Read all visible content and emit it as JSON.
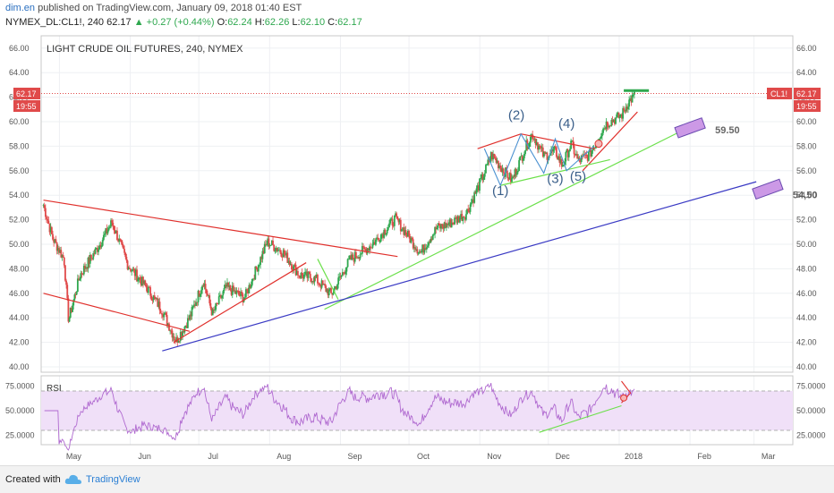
{
  "header": {
    "author": "dim.en",
    "published": "published on TradingView.com, January 09, 2018 01:40 EST",
    "symbol": "NYMEX_DL:CL1!, 240",
    "last": "62.17",
    "change": "▲ +0.27 (+0.44%)",
    "o_label": "O:",
    "o": "62.24",
    "h_label": "H:",
    "h": "62.26",
    "l_label": "L:",
    "l": "62.10",
    "c_label": "C:",
    "c": "62.17"
  },
  "footer": {
    "created": "Created with",
    "brand": "TradingView"
  },
  "colors": {
    "up": "#2fa84f",
    "down": "#e04a4a",
    "red_line": "#e0302c",
    "green_line": "#6be04a",
    "blue_line": "#3a3ac4",
    "wave": "#4a90d0",
    "rsi_fill": "#f0e0f8",
    "rsi_line": "#b06ad0"
  },
  "chart_data": [
    {
      "type": "candlestick",
      "title": "LIGHT CRUDE OIL FUTURES, 240, NYMEX",
      "ylim": [
        40,
        66
      ],
      "y_ticks": [
        "66.00",
        "64.00",
        "62.00",
        "60.00",
        "58.00",
        "56.00",
        "54.00",
        "52.00",
        "50.00",
        "48.00",
        "46.00",
        "44.00",
        "42.00",
        "40.00"
      ],
      "x_ticks": [
        "May",
        "Jun",
        "Jul",
        "Aug",
        "Sep",
        "Oct",
        "Nov",
        "Dec",
        "2018",
        "Feb",
        "Mar"
      ],
      "price_badge": "62.17",
      "time_badge": "19:55",
      "symbol_badge": "CL1!",
      "close_path": [
        {
          "d": "2017-04-24",
          "v": 53.2
        },
        {
          "d": "2017-04-28",
          "v": 50.5
        },
        {
          "d": "2017-05-03",
          "v": 48.8
        },
        {
          "d": "2017-05-05",
          "v": 43.8
        },
        {
          "d": "2017-05-10",
          "v": 47.5
        },
        {
          "d": "2017-05-18",
          "v": 49.8
        },
        {
          "d": "2017-05-24",
          "v": 51.8
        },
        {
          "d": "2017-05-31",
          "v": 48.3
        },
        {
          "d": "2017-06-08",
          "v": 46.5
        },
        {
          "d": "2017-06-15",
          "v": 44.6
        },
        {
          "d": "2017-06-21",
          "v": 42.1
        },
        {
          "d": "2017-06-27",
          "v": 44.0
        },
        {
          "d": "2017-07-03",
          "v": 47.0
        },
        {
          "d": "2017-07-07",
          "v": 44.3
        },
        {
          "d": "2017-07-13",
          "v": 46.5
        },
        {
          "d": "2017-07-21",
          "v": 45.6
        },
        {
          "d": "2017-07-31",
          "v": 50.2
        },
        {
          "d": "2017-08-07",
          "v": 49.3
        },
        {
          "d": "2017-08-14",
          "v": 47.5
        },
        {
          "d": "2017-08-21",
          "v": 47.2
        },
        {
          "d": "2017-08-28",
          "v": 45.9
        },
        {
          "d": "2017-09-05",
          "v": 48.7
        },
        {
          "d": "2017-09-15",
          "v": 50.0
        },
        {
          "d": "2017-09-25",
          "v": 52.1
        },
        {
          "d": "2017-10-06",
          "v": 49.3
        },
        {
          "d": "2017-10-13",
          "v": 51.3
        },
        {
          "d": "2017-10-19",
          "v": 51.7
        },
        {
          "d": "2017-10-26",
          "v": 52.5
        },
        {
          "d": "2017-11-03",
          "v": 55.8
        },
        {
          "d": "2017-11-06",
          "v": 57.3
        },
        {
          "d": "2017-11-15",
          "v": 55.2
        },
        {
          "d": "2017-11-21",
          "v": 57.9
        },
        {
          "d": "2017-11-24",
          "v": 59.0
        },
        {
          "d": "2017-11-29",
          "v": 57.2
        },
        {
          "d": "2017-12-04",
          "v": 57.6
        },
        {
          "d": "2017-12-07",
          "v": 56.4
        },
        {
          "d": "2017-12-11",
          "v": 58.2
        },
        {
          "d": "2017-12-14",
          "v": 56.8
        },
        {
          "d": "2017-12-19",
          "v": 57.3
        },
        {
          "d": "2017-12-26",
          "v": 59.8
        },
        {
          "d": "2018-01-02",
          "v": 60.5
        },
        {
          "d": "2018-01-05",
          "v": 61.6
        },
        {
          "d": "2018-01-08",
          "v": 62.17
        }
      ],
      "trendlines": [
        {
          "color": "red",
          "from": {
            "d": "2017-04-24",
            "v": 53.6
          },
          "to": {
            "d": "2017-09-26",
            "v": 49.0
          }
        },
        {
          "color": "red",
          "from": {
            "d": "2017-04-24",
            "v": 46.0
          },
          "to": {
            "d": "2017-06-27",
            "v": 42.9
          }
        },
        {
          "color": "red",
          "from": {
            "d": "2017-06-20",
            "v": 42.0
          },
          "to": {
            "d": "2017-08-17",
            "v": 48.5
          }
        },
        {
          "color": "red",
          "from": {
            "d": "2017-10-31",
            "v": 57.8
          },
          "to": {
            "d": "2017-11-19",
            "v": 59.0
          }
        },
        {
          "color": "red",
          "from": {
            "d": "2017-11-19",
            "v": 59.0
          },
          "to": {
            "d": "2017-12-21",
            "v": 57.8
          }
        },
        {
          "color": "red",
          "from": {
            "d": "2017-12-16",
            "v": 56.0
          },
          "to": {
            "d": "2018-01-09",
            "v": 60.8
          }
        },
        {
          "color": "green",
          "from": {
            "d": "2017-08-25",
            "v": 44.7
          },
          "to": {
            "d": "2018-01-31",
            "v": 59.5
          }
        },
        {
          "color": "green",
          "from": {
            "d": "2017-11-10",
            "v": 54.8
          },
          "to": {
            "d": "2017-12-28",
            "v": 56.9
          }
        },
        {
          "color": "green",
          "from": {
            "d": "2017-08-22",
            "v": 48.8
          },
          "to": {
            "d": "2017-08-31",
            "v": 45.5
          }
        },
        {
          "color": "blue",
          "from": {
            "d": "2017-06-15",
            "v": 41.3
          },
          "to": {
            "d": "2018-03-02",
            "v": 55.1
          }
        }
      ],
      "wave_path": [
        {
          "d": "2017-11-03",
          "v": 57.8
        },
        {
          "d": "2017-11-10",
          "v": 54.8
        },
        {
          "d": "2017-11-19",
          "v": 59.0
        },
        {
          "d": "2017-11-29",
          "v": 55.8
        },
        {
          "d": "2017-12-04",
          "v": 58.6
        },
        {
          "d": "2017-12-09",
          "v": 56.0
        },
        {
          "d": "2017-12-21",
          "v": 58.0
        }
      ],
      "annotations": [
        {
          "text": "(1)",
          "d": "2017-11-10",
          "v": 54.0
        },
        {
          "text": "(2)",
          "d": "2017-11-17",
          "v": 60.2
        },
        {
          "text": "(3)",
          "d": "2017-12-04",
          "v": 55.0
        },
        {
          "text": "(4)",
          "d": "2017-12-09",
          "v": 59.5
        },
        {
          "text": "(5)",
          "d": "2017-12-14",
          "v": 55.2
        }
      ],
      "targets": [
        {
          "label": "59.50",
          "d": "2018-02-01",
          "v": 59.5
        },
        {
          "label": "54,50",
          "d": "2018-03-07",
          "v": 54.5
        }
      ],
      "top_mark": {
        "from": "2018-01-03",
        "to": "2018-01-14",
        "v": 62.5
      }
    },
    {
      "type": "line",
      "title": "RSI",
      "ylim": [
        8,
        86
      ],
      "y_ticks": [
        "75.0000",
        "50.0000",
        "25.0000"
      ],
      "bands": [
        30,
        70
      ],
      "trendlines": [
        {
          "color": "green",
          "from": {
            "d": "2017-11-27",
            "v": 28
          },
          "to": {
            "d": "2018-01-02",
            "v": 55
          }
        }
      ]
    }
  ]
}
